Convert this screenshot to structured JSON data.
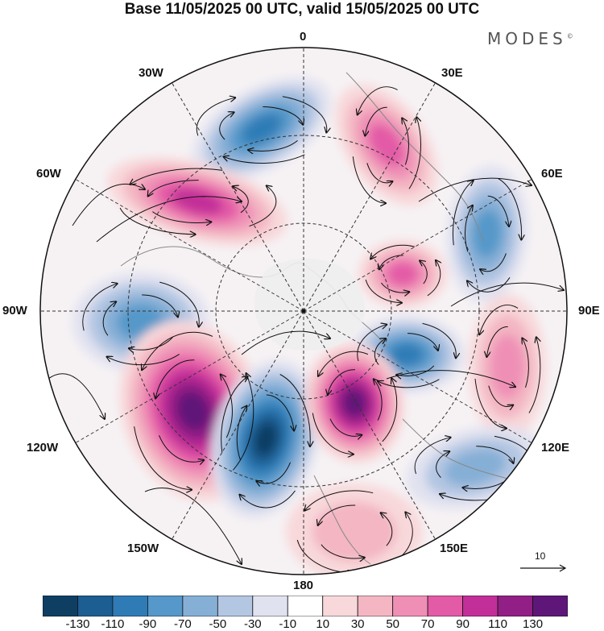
{
  "title": "Base 11/05/2025 00 UTC, valid 15/05/2025 00 UTC",
  "brand": "MODES",
  "brand_mark": "©",
  "longitude_labels": {
    "lon_0": "0",
    "lon_30e": "30E",
    "lon_60e": "60E",
    "lon_90e": "90E",
    "lon_120e": "120E",
    "lon_150e": "150E",
    "lon_180": "180",
    "lon_150w": "150W",
    "lon_120w": "120W",
    "lon_90w": "90W",
    "lon_60w": "60W",
    "lon_30w": "30W"
  },
  "reference_vector": {
    "label": "10"
  },
  "colorbar": {
    "colors": [
      "#0f3e63",
      "#1c5d92",
      "#2f7bb6",
      "#5598c9",
      "#86afd6",
      "#b3c6e2",
      "#e1e2f0",
      "#ffffff",
      "#f8d8da",
      "#f3b6c2",
      "#ef8fb6",
      "#e35aa6",
      "#c22f98",
      "#921f85",
      "#5e1778"
    ],
    "tick_labels": [
      "-130",
      "-110",
      "-90",
      "-70",
      "-50",
      "-30",
      "-10",
      "10",
      "30",
      "50",
      "70",
      "90",
      "110",
      "130"
    ]
  },
  "anomaly_features": [
    {
      "sign": "negative",
      "level": 90,
      "region": "north atlantic, near 30W"
    },
    {
      "sign": "positive",
      "level": 90,
      "region": "greenland / 60W"
    },
    {
      "sign": "positive",
      "level": 70,
      "region": "scandinavia, near 20E"
    },
    {
      "sign": "negative",
      "level": 70,
      "region": "western siberia, near 60E"
    },
    {
      "sign": "positive",
      "level": 70,
      "region": "kara sea"
    },
    {
      "sign": "negative",
      "level": 70,
      "region": "canadian arctic, near 90W"
    },
    {
      "sign": "negative",
      "level": 90,
      "region": "east siberia, near 110E"
    },
    {
      "sign": "positive",
      "level": 50,
      "region": "central siberia, near 90E"
    },
    {
      "sign": "positive",
      "level": 130,
      "region": "alaska / yukon, near 130W"
    },
    {
      "sign": "negative",
      "level": 130,
      "region": "gulf of alaska, near 160W"
    },
    {
      "sign": "positive",
      "level": 130,
      "region": "chukchi / east siberian sea"
    },
    {
      "sign": "negative",
      "level": 50,
      "region": "okhotsk, near 130E"
    },
    {
      "sign": "positive",
      "level": 30,
      "region": "bering sea, near 165E"
    }
  ]
}
